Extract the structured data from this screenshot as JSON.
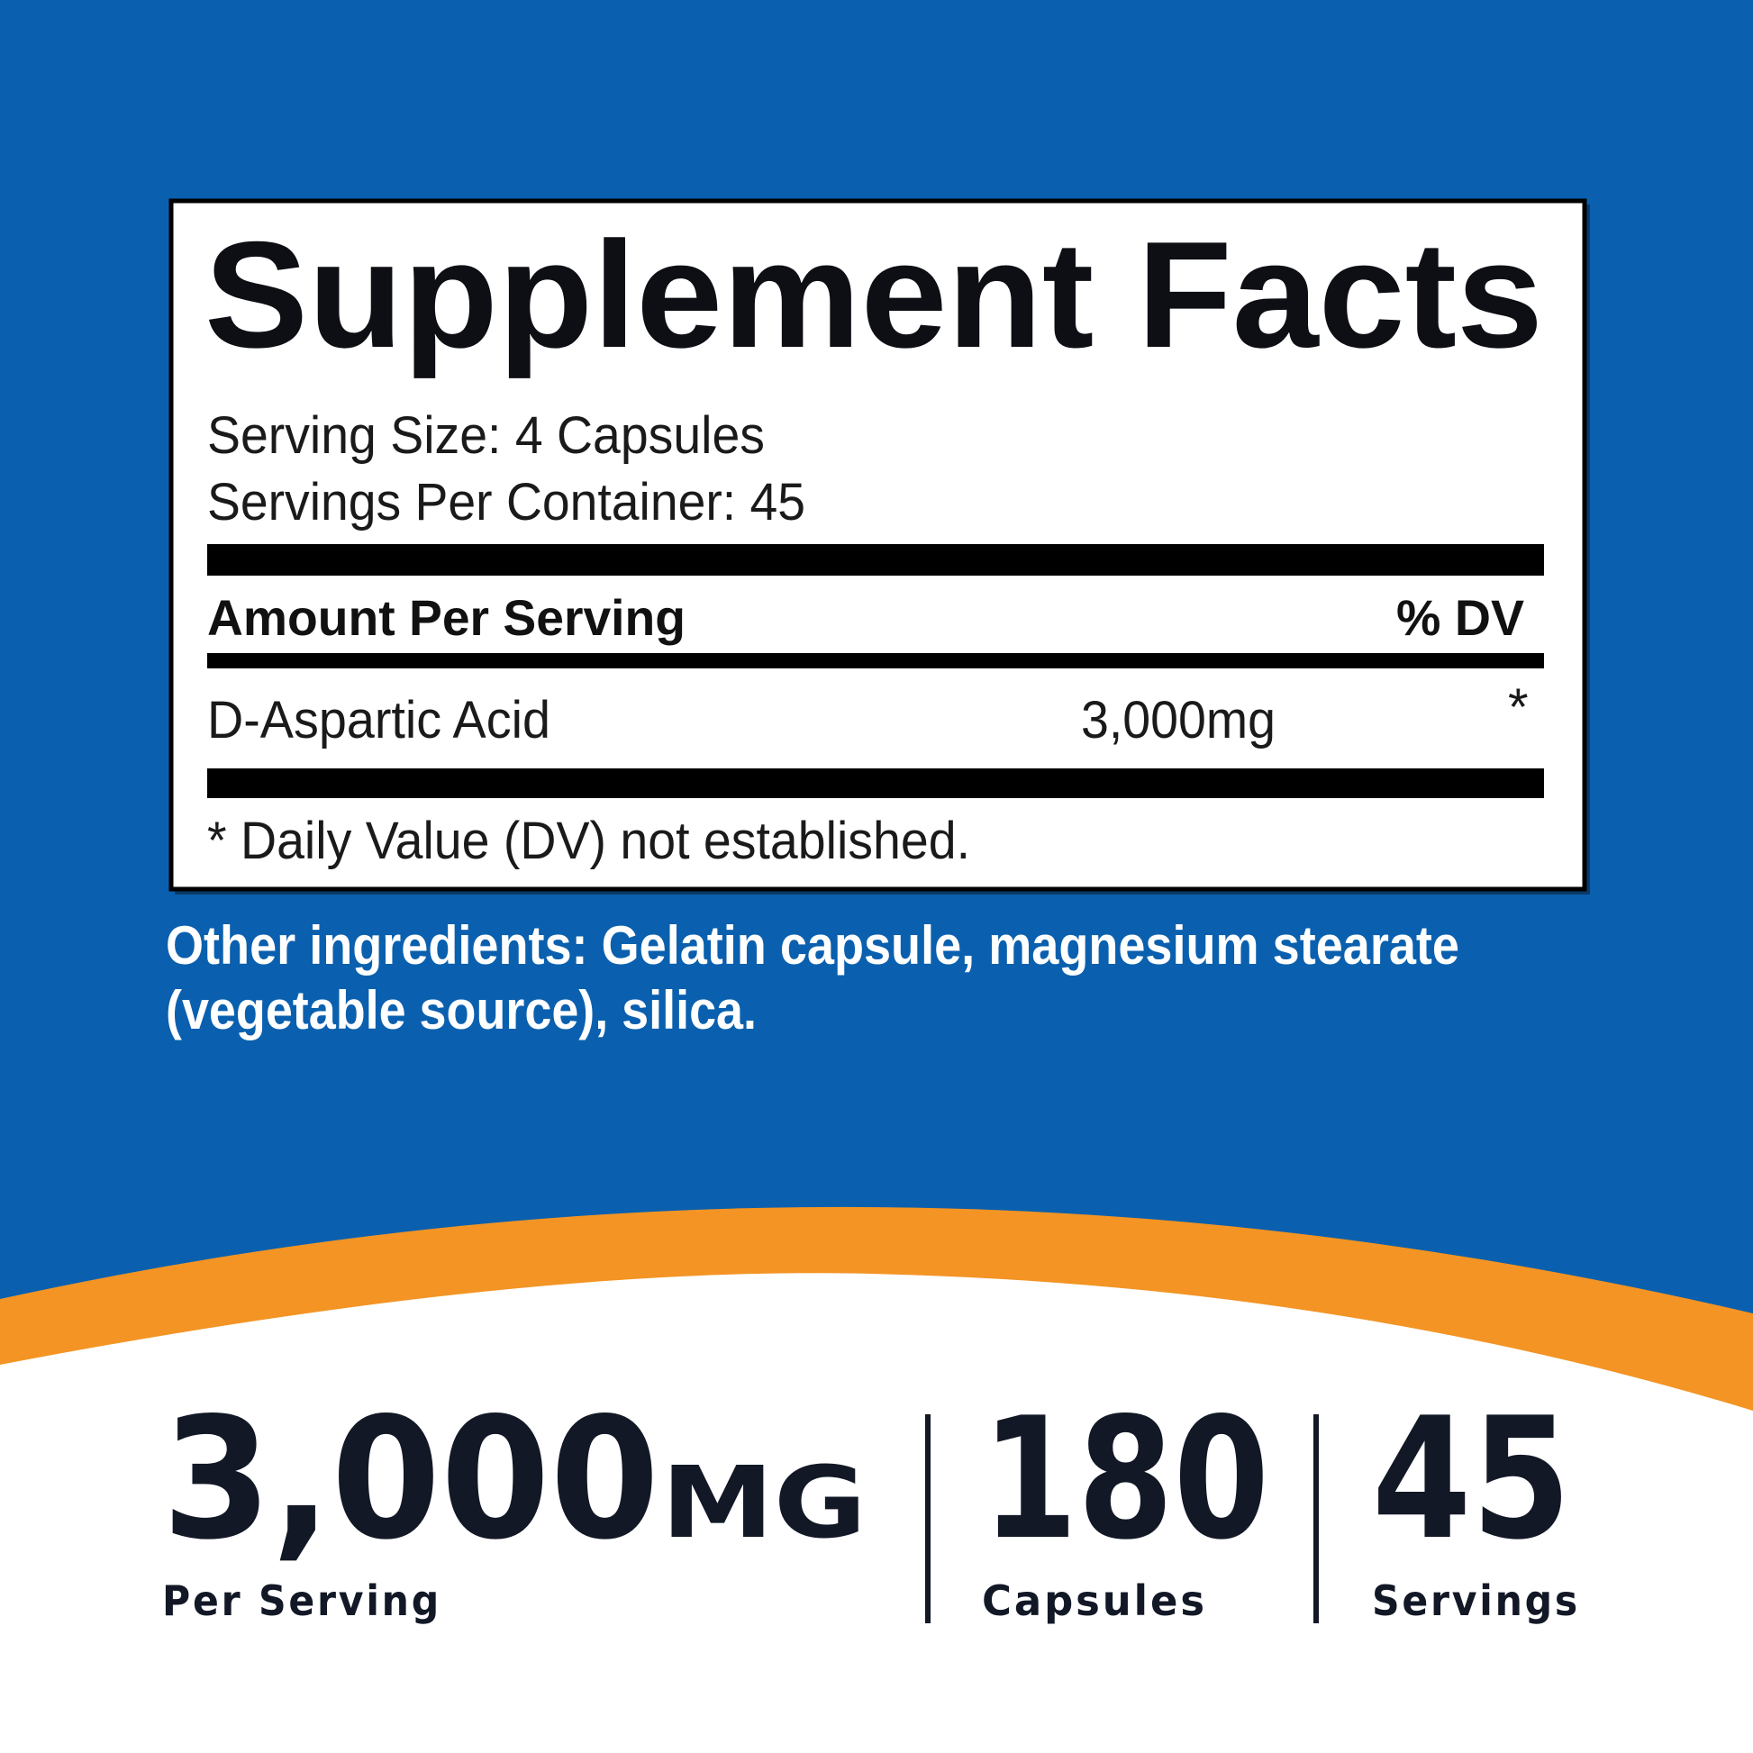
{
  "colors": {
    "background_blue": "#0a60ae",
    "orange_band": "#f39424",
    "text_dark": "#121826"
  },
  "facts": {
    "title": "Supplement Facts",
    "serving_size": "Serving Size: 4 Capsules",
    "servings_per_container": "Servings Per Container: 45",
    "amount_header": "Amount Per Serving",
    "dv_header": "% DV",
    "ingredient": {
      "name": "D-Aspartic Acid",
      "amount": "3,000mg",
      "dv": "*"
    },
    "footnote": "* Daily Value (DV) not established."
  },
  "other_ingredients": {
    "line1": "Other ingredients: Gelatin capsule, magnesium stearate",
    "line2": "(vegetable source), silica."
  },
  "highlights": {
    "dose_value": "3,000",
    "dose_unit": "MG",
    "dose_label": "Per Serving",
    "capsules_value": "180",
    "capsules_label": "Capsules",
    "servings_value": "45",
    "servings_label": "Servings"
  }
}
